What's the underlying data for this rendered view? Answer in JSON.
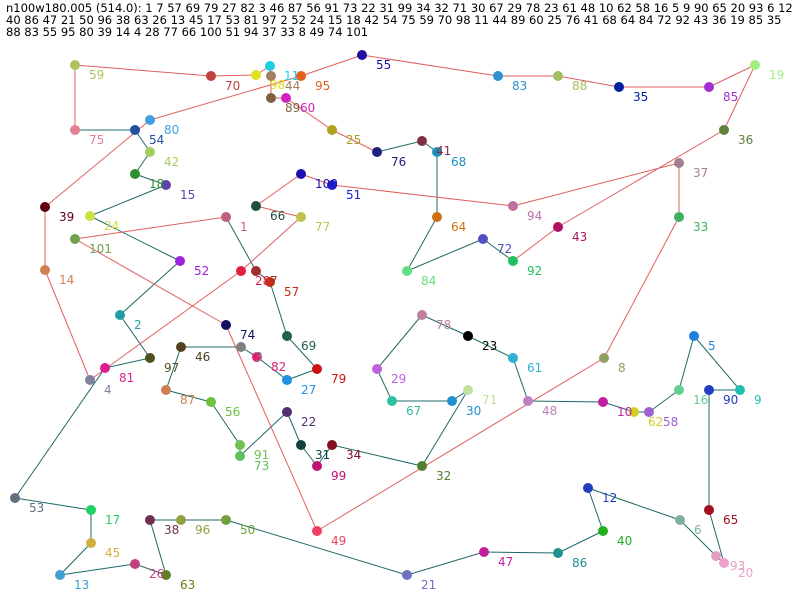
{
  "header": {
    "lines": [
      "n100w180.005 (514.0): 1 7 57 69 79 27 82 3 46 87 56 91 73 22 31 99 34 32 71 30 67 29 78 23 61 48 10 62 58 16 5 9 90 65 20 93 6 12",
      "40 86 47 21 50 96 38 63 26 13 45 17 53 81 97 2 52 24 15 18 42 54 75 59 70 98 11 44 89 60 25 76 41 68 64 84 72 92 43 36 19 85 35",
      "88 83 55 95 80 39 14 4 28 77 66 100 51 94 37 33 8 49 74 101"
    ]
  },
  "nodes": [
    {
      "label": "1"
    },
    {
      "label": "2"
    },
    {
      "label": "3"
    },
    {
      "label": "4"
    },
    {
      "label": "5"
    },
    {
      "label": "6"
    },
    {
      "label": "7"
    },
    {
      "label": "8"
    },
    {
      "label": "9"
    },
    {
      "label": "10"
    },
    {
      "label": "11"
    },
    {
      "label": "12"
    },
    {
      "label": "13"
    },
    {
      "label": "14"
    },
    {
      "label": "15"
    },
    {
      "label": "16"
    },
    {
      "label": "17"
    },
    {
      "label": "18"
    },
    {
      "label": "19"
    },
    {
      "label": "20"
    },
    {
      "label": "21"
    },
    {
      "label": "22"
    },
    {
      "label": "23"
    },
    {
      "label": "24"
    },
    {
      "label": "25"
    },
    {
      "label": "26"
    },
    {
      "label": "27"
    },
    {
      "label": "28"
    },
    {
      "label": "29"
    },
    {
      "label": "30"
    },
    {
      "label": "31"
    },
    {
      "label": "32"
    },
    {
      "label": "33"
    },
    {
      "label": "34"
    },
    {
      "label": "35"
    },
    {
      "label": "36"
    },
    {
      "label": "37"
    },
    {
      "label": "38"
    },
    {
      "label": "39"
    },
    {
      "label": "40"
    },
    {
      "label": "41"
    },
    {
      "label": "42"
    },
    {
      "label": "43"
    },
    {
      "label": "44"
    },
    {
      "label": "45"
    },
    {
      "label": "46"
    },
    {
      "label": "47"
    },
    {
      "label": "48"
    },
    {
      "label": "49"
    },
    {
      "label": "50"
    },
    {
      "label": "51"
    },
    {
      "label": "52"
    },
    {
      "label": "53"
    },
    {
      "label": "54"
    },
    {
      "label": "55"
    },
    {
      "label": "56"
    },
    {
      "label": "57"
    },
    {
      "label": "58"
    },
    {
      "label": "59"
    },
    {
      "label": "60"
    },
    {
      "label": "61"
    },
    {
      "label": "62"
    },
    {
      "label": "63"
    },
    {
      "label": "64"
    },
    {
      "label": "65"
    },
    {
      "label": "66"
    },
    {
      "label": "67"
    },
    {
      "label": "68"
    },
    {
      "label": "69"
    },
    {
      "label": "70"
    },
    {
      "label": "71"
    },
    {
      "label": "72"
    },
    {
      "label": "73"
    },
    {
      "label": "74"
    },
    {
      "label": "75"
    },
    {
      "label": "76"
    },
    {
      "label": "77"
    },
    {
      "label": "78"
    },
    {
      "label": "79"
    },
    {
      "label": "80"
    },
    {
      "label": "81"
    },
    {
      "label": "82"
    },
    {
      "label": "83"
    },
    {
      "label": "84"
    },
    {
      "label": "85"
    },
    {
      "label": "86"
    },
    {
      "label": "87"
    },
    {
      "label": "88"
    },
    {
      "label": "89"
    },
    {
      "label": "90"
    },
    {
      "label": "91"
    },
    {
      "label": "92"
    },
    {
      "label": "93"
    },
    {
      "label": "94"
    },
    {
      "label": "95"
    },
    {
      "label": "96"
    },
    {
      "label": "97"
    },
    {
      "label": "98"
    },
    {
      "label": "99"
    },
    {
      "label": "100"
    },
    {
      "label": "101"
    }
  ]
}
